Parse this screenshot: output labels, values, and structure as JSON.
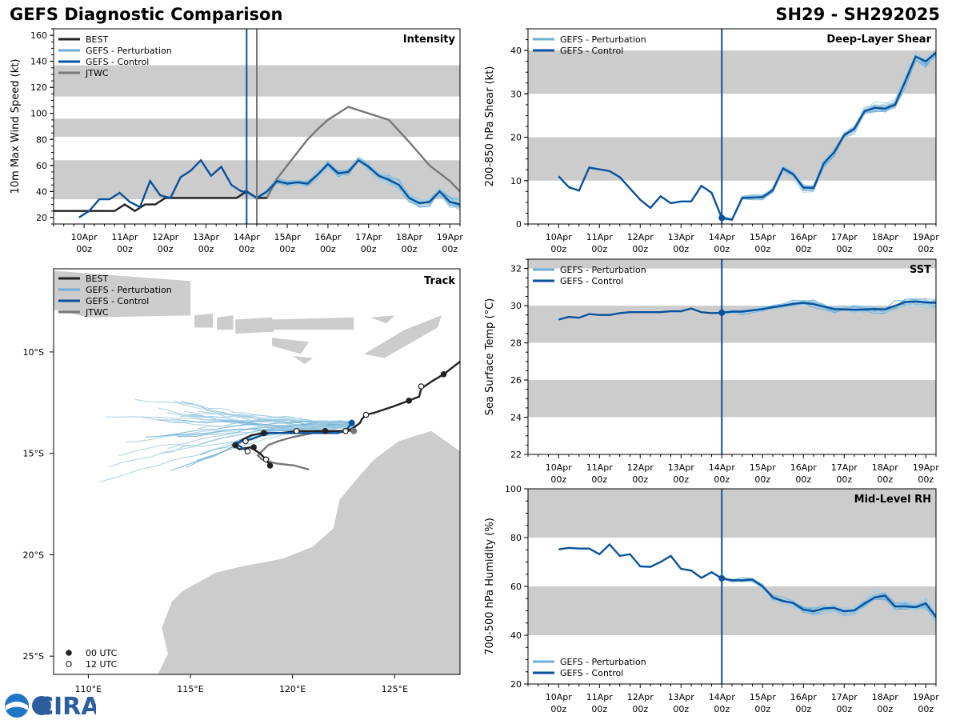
{
  "header": {
    "title_left": "GEFS Diagnostic Comparison",
    "title_right": "SH29 - SH292025"
  },
  "logo": {
    "text": "CIRA"
  },
  "colors": {
    "best": "#222222",
    "perturbation": "#6baed6",
    "perturbation_light": "#9ecae1",
    "control": "#08519c",
    "jtwc": "#777777",
    "band": "#cccccc",
    "land": "#cccccc"
  },
  "time_ticks": [
    {
      "day": "10Apr",
      "hour": "00z",
      "t": 0
    },
    {
      "day": "11Apr",
      "hour": "00z",
      "t": 24
    },
    {
      "day": "12Apr",
      "hour": "00z",
      "t": 48
    },
    {
      "day": "13Apr",
      "hour": "00z",
      "t": 72
    },
    {
      "day": "14Apr",
      "hour": "00z",
      "t": 96
    },
    {
      "day": "15Apr",
      "hour": "00z",
      "t": 120
    },
    {
      "day": "16Apr",
      "hour": "00z",
      "t": 144
    },
    {
      "day": "17Apr",
      "hour": "00z",
      "t": 168
    },
    {
      "day": "18Apr",
      "hour": "00z",
      "t": 192
    },
    {
      "day": "19Apr",
      "hour": "00z",
      "t": 216
    }
  ],
  "chart_data": [
    {
      "id": "intensity",
      "type": "line",
      "title": "Intensity",
      "ylabel": "10m Max Wind Speed (kt)",
      "xlim": [
        -18,
        222
      ],
      "ylim": [
        15,
        165
      ],
      "yticks": [
        20,
        40,
        60,
        80,
        100,
        120,
        140,
        160
      ],
      "bands": [
        [
          34,
          64
        ],
        [
          82,
          96
        ],
        [
          113,
          137
        ]
      ],
      "init_line": 96,
      "jtwc_init_line": 102,
      "legend": [
        "BEST",
        "GEFS - Perturbation",
        "GEFS - Control",
        "JTWC"
      ],
      "best": {
        "t": [
          -18,
          -12,
          -6,
          0,
          6,
          12,
          18,
          24,
          30,
          36,
          42,
          48,
          54,
          60,
          66,
          72,
          78,
          84,
          90,
          96,
          102,
          108
        ],
        "v": [
          25,
          25,
          25,
          25,
          25,
          25,
          25,
          30,
          25,
          30,
          30,
          35,
          35,
          35,
          35,
          35,
          35,
          35,
          35,
          40,
          35,
          35
        ]
      },
      "control": {
        "t": [
          -3,
          3,
          9,
          15,
          21,
          27,
          33,
          39,
          45,
          51,
          57,
          63,
          69,
          75,
          81,
          87,
          93,
          96,
          102,
          108,
          114,
          120,
          126,
          132,
          138,
          144,
          150,
          156,
          162,
          168,
          174,
          180,
          186,
          192,
          198,
          204,
          210,
          216,
          222
        ],
        "v": [
          20,
          25,
          34,
          34,
          39,
          32,
          28,
          48,
          37,
          35,
          51,
          56,
          64,
          52,
          59,
          45,
          40,
          40,
          35,
          40,
          48,
          46,
          47,
          46,
          53,
          61,
          54,
          55,
          64,
          59,
          52,
          49,
          45,
          35,
          31,
          32,
          40,
          32,
          30
        ]
      },
      "jtwc": {
        "t": [
          102,
          108,
          114,
          120,
          126,
          132,
          138,
          144,
          156,
          168,
          180,
          192,
          204,
          216,
          222
        ],
        "v": [
          35,
          35,
          50,
          60,
          70,
          80,
          88,
          95,
          105,
          100,
          95,
          78,
          60,
          48,
          40
        ]
      },
      "perturbation": {
        "t0": 96,
        "dt": 6,
        "steps": 22,
        "count": 24
      }
    },
    {
      "id": "shear",
      "type": "line",
      "title": "Deep-Layer Shear",
      "ylabel": "200-850 hPa Shear (kt)",
      "xlim": [
        -18,
        222
      ],
      "ylim": [
        0,
        45
      ],
      "yticks": [
        0,
        10,
        20,
        30,
        40
      ],
      "bands": [
        [
          10,
          20
        ],
        [
          30,
          40
        ]
      ],
      "init_line": 96,
      "legend": [
        "GEFS - Perturbation",
        "GEFS - Control"
      ],
      "control": {
        "t": [
          0,
          6,
          12,
          18,
          24,
          30,
          36,
          42,
          48,
          54,
          60,
          66,
          72,
          78,
          84,
          90,
          96,
          102,
          108,
          114,
          120,
          126,
          132,
          138,
          144,
          150,
          156,
          162,
          168,
          174,
          180,
          186,
          192,
          198,
          204,
          210,
          216,
          222
        ],
        "v": [
          11,
          8.5,
          7.7,
          13,
          12.6,
          12.2,
          10.8,
          8.2,
          5.6,
          3.7,
          6.4,
          4.8,
          5.2,
          5.2,
          8.8,
          7.2,
          1.4,
          1.0,
          6.0,
          6.1,
          6.2,
          7.8,
          12.8,
          11.5,
          8.4,
          8.3,
          14,
          16.5,
          20.5,
          22,
          26,
          26.8,
          26.6,
          27.5,
          33,
          38.6,
          37.5,
          39.5
        ]
      },
      "perturbation": {
        "t0": 96,
        "dt": 6,
        "steps": 21,
        "count": 24
      }
    },
    {
      "id": "sst",
      "type": "line",
      "title": "SST",
      "ylabel": "Sea Surface Temp (°C)",
      "xlim": [
        -18,
        222
      ],
      "ylim": [
        22,
        32.5
      ],
      "yticks": [
        22,
        24,
        26,
        28,
        30,
        32
      ],
      "bands": [
        [
          24,
          26
        ],
        [
          28,
          30
        ],
        [
          32,
          32.5
        ]
      ],
      "init_line": 96,
      "legend": [
        "GEFS - Perturbation",
        "GEFS - Control"
      ],
      "control": {
        "t": [
          0,
          6,
          12,
          18,
          24,
          30,
          36,
          42,
          48,
          54,
          60,
          66,
          72,
          78,
          84,
          90,
          96,
          102,
          108,
          114,
          120,
          126,
          132,
          138,
          144,
          150,
          156,
          162,
          168,
          174,
          180,
          186,
          192,
          198,
          204,
          210,
          216,
          222
        ],
        "v": [
          29.25,
          29.4,
          29.35,
          29.55,
          29.5,
          29.5,
          29.6,
          29.65,
          29.65,
          29.65,
          29.65,
          29.7,
          29.7,
          29.85,
          29.65,
          29.6,
          29.62,
          29.68,
          29.68,
          29.75,
          29.82,
          29.92,
          30.0,
          30.1,
          30.15,
          30.08,
          29.95,
          29.82,
          29.8,
          29.78,
          29.8,
          29.82,
          29.8,
          30.0,
          30.2,
          30.22,
          30.18,
          30.15
        ]
      },
      "perturbation": {
        "t0": 96,
        "dt": 6,
        "steps": 21,
        "count": 20
      }
    },
    {
      "id": "rh",
      "type": "line",
      "title": "Mid-Level RH",
      "ylabel": "700-500 hPa Humidity (%)",
      "xlim": [
        -18,
        222
      ],
      "ylim": [
        20,
        100
      ],
      "yticks": [
        20,
        40,
        60,
        80,
        100
      ],
      "bands": [
        [
          40,
          60
        ],
        [
          80,
          100
        ]
      ],
      "init_line": 96,
      "legend": [
        "GEFS - Perturbation",
        "GEFS - Control"
      ],
      "control": {
        "t": [
          0,
          6,
          12,
          18,
          24,
          30,
          36,
          42,
          48,
          54,
          60,
          66,
          72,
          78,
          84,
          90,
          96,
          102,
          108,
          114,
          120,
          126,
          132,
          138,
          144,
          150,
          156,
          162,
          168,
          174,
          180,
          186,
          192,
          198,
          204,
          210,
          216,
          222
        ],
        "v": [
          75.2,
          75.8,
          75.5,
          75.5,
          73.2,
          77.2,
          72.5,
          73.2,
          68.2,
          68,
          70,
          72.5,
          67.2,
          66.5,
          63.5,
          65.8,
          63.3,
          62.5,
          62.5,
          62.8,
          60,
          55.5,
          54,
          53.2,
          50.5,
          49.8,
          51,
          51.2,
          49.8,
          50.2,
          53,
          55.5,
          56.2,
          51.8,
          51.8,
          51.5,
          53,
          47.5
        ]
      },
      "perturbation": {
        "t0": 96,
        "dt": 6,
        "steps": 21,
        "count": 24
      }
    },
    {
      "id": "track",
      "type": "scatter",
      "title": "Track",
      "xlim": [
        108.3,
        128.2
      ],
      "ylim": [
        -25.9,
        -5.9
      ],
      "xticks": [
        {
          "v": 110,
          "label": "110°E"
        },
        {
          "v": 115,
          "label": "115°E"
        },
        {
          "v": 120,
          "label": "120°E"
        },
        {
          "v": 125,
          "label": "125°E"
        }
      ],
      "yticks": [
        {
          "v": -10,
          "label": "10°S"
        },
        {
          "v": -15,
          "label": "15°S"
        },
        {
          "v": -20,
          "label": "20°S"
        },
        {
          "v": -25,
          "label": "25°S"
        }
      ],
      "legend": [
        "BEST",
        "GEFS - Perturbation",
        "GEFS - Control",
        "JTWC"
      ],
      "marker_legend": [
        "00 UTC",
        "12 UTC"
      ],
      "best": {
        "lon": [
          128.3,
          127.4,
          126.9,
          126.3,
          126.2,
          125.7,
          124.9,
          124.0,
          123.6,
          123.4,
          123.3,
          122.9,
          122.6,
          121.4,
          120.3,
          119.4,
          118.6,
          118.0,
          117.6,
          117.3,
          117.1,
          117.4,
          117.9,
          118.1,
          118.4,
          118.7,
          118.9
        ],
        "lat": [
          -10.4,
          -11.1,
          -11.4,
          -11.8,
          -12.2,
          -12.4,
          -12.7,
          -13.0,
          -13.1,
          -13.3,
          -13.5,
          -13.8,
          -13.9,
          -13.9,
          -13.9,
          -14.0,
          -14.0,
          -14.1,
          -14.3,
          -14.5,
          -14.6,
          -14.8,
          -14.7,
          -14.8,
          -15.0,
          -15.3,
          -15.6
        ]
      },
      "best_markers": [
        {
          "lon": 127.4,
          "lat": -11.1,
          "filled": true
        },
        {
          "lon": 126.3,
          "lat": -11.7,
          "filled": false
        },
        {
          "lon": 125.7,
          "lat": -12.4,
          "filled": true
        },
        {
          "lon": 123.6,
          "lat": -13.1,
          "filled": false
        },
        {
          "lon": 122.6,
          "lat": -13.9,
          "filled": false
        },
        {
          "lon": 121.6,
          "lat": -13.9,
          "filled": true
        },
        {
          "lon": 120.2,
          "lat": -13.9,
          "filled": false
        },
        {
          "lon": 118.6,
          "lat": -14.0,
          "filled": true
        },
        {
          "lon": 117.7,
          "lat": -14.4,
          "filled": false
        },
        {
          "lon": 117.2,
          "lat": -14.6,
          "filled": true
        },
        {
          "lon": 117.8,
          "lat": -14.9,
          "filled": false
        },
        {
          "lon": 118.1,
          "lat": -14.7,
          "filled": true
        },
        {
          "lon": 118.7,
          "lat": -15.3,
          "filled": false
        },
        {
          "lon": 118.9,
          "lat": -15.6,
          "filled": true
        }
      ],
      "control": {
        "lon": [
          122.9,
          122.6,
          122.2,
          121.5,
          120.7,
          119.8,
          118.9,
          118.5,
          118.0,
          117.5,
          117.2,
          117.5,
          117.8
        ],
        "lat": [
          -13.5,
          -13.9,
          -14.0,
          -14.0,
          -14.0,
          -14.0,
          -14.0,
          -14.1,
          -14.3,
          -14.4,
          -14.5,
          -14.7,
          -14.9
        ]
      },
      "jtwc": {
        "lon": [
          123.0,
          122.0,
          121.0,
          120.0,
          119.3,
          118.8,
          118.5,
          118.3,
          118.5,
          119.2,
          120.1,
          120.8
        ],
        "lat": [
          -13.9,
          -13.9,
          -14.0,
          -14.2,
          -14.4,
          -14.6,
          -14.9,
          -15.1,
          -15.3,
          -15.5,
          -15.6,
          -15.8
        ]
      },
      "perturbation": {
        "count": 30,
        "start_lon": 123.0,
        "start_lat": -13.6
      }
    }
  ]
}
